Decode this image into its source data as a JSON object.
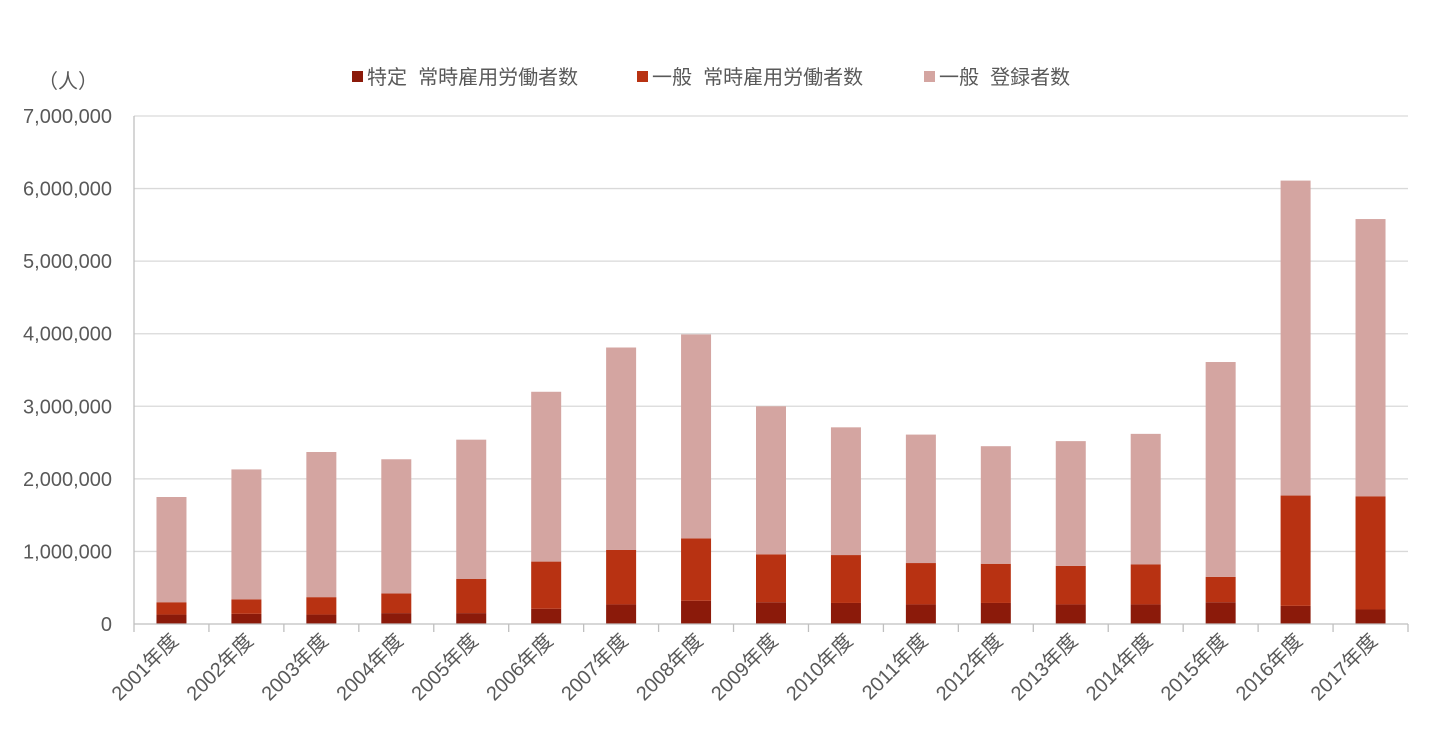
{
  "chart_data": {
    "type": "bar",
    "stacked": true,
    "unit_label": "（人）",
    "categories": [
      "2001年度",
      "2002年度",
      "2003年度",
      "2004年度",
      "2005年度",
      "2006年度",
      "2007年度",
      "2008年度",
      "2009年度",
      "2010年度",
      "2011年度",
      "2012年度",
      "2013年度",
      "2014年度",
      "2015年度",
      "2016年度",
      "2017年度"
    ],
    "series": [
      {
        "name": "特定  常時雇用労働者数",
        "color": "#8B1A0A",
        "values": [
          130000,
          140000,
          130000,
          150000,
          150000,
          210000,
          270000,
          320000,
          300000,
          290000,
          270000,
          290000,
          270000,
          270000,
          300000,
          250000,
          200000
        ]
      },
      {
        "name": "一般  常時雇用労働者数",
        "color": "#B83212",
        "values": [
          170000,
          200000,
          240000,
          270000,
          470000,
          650000,
          750000,
          860000,
          660000,
          660000,
          570000,
          540000,
          530000,
          550000,
          350000,
          1520000,
          1560000
        ]
      },
      {
        "name": "一般  登録者数",
        "color": "#D4A5A1",
        "values": [
          1450000,
          1790000,
          2000000,
          1850000,
          1920000,
          2340000,
          2790000,
          2810000,
          2040000,
          1760000,
          1770000,
          1620000,
          1720000,
          1800000,
          2960000,
          4340000,
          3820000
        ]
      }
    ],
    "ylim": [
      0,
      7000000
    ],
    "yticks": [
      "0",
      "1,000,000",
      "2,000,000",
      "3,000,000",
      "4,000,000",
      "5,000,000",
      "6,000,000",
      "7,000,000"
    ],
    "grid": true,
    "legend_position": "top-center"
  }
}
